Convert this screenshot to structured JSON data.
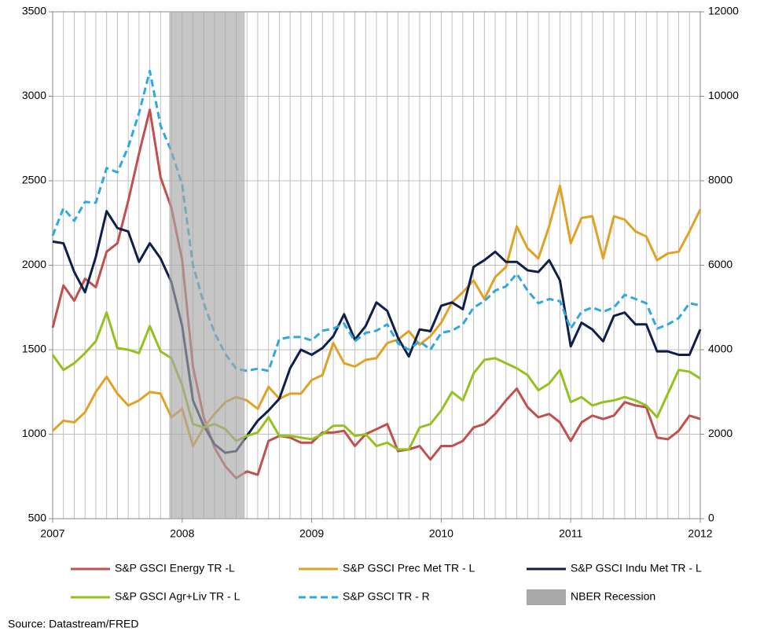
{
  "chart_data": {
    "type": "line",
    "categories": [
      "2007",
      null,
      null,
      null,
      null,
      null,
      null,
      null,
      null,
      null,
      null,
      null,
      "2008",
      null,
      null,
      null,
      null,
      null,
      null,
      null,
      null,
      null,
      null,
      null,
      "2009",
      null,
      null,
      null,
      null,
      null,
      null,
      null,
      null,
      null,
      null,
      null,
      "2010",
      null,
      null,
      null,
      null,
      null,
      null,
      null,
      null,
      null,
      null,
      null,
      "2011",
      null,
      null,
      null,
      null,
      null,
      null,
      null,
      null,
      null,
      null,
      null,
      "2012"
    ],
    "series": [
      {
        "name": "S&P GSCI Energy TR -L",
        "color": "#c0504d",
        "axis": "y",
        "values": [
          1630,
          1880,
          1790,
          1920,
          1870,
          2080,
          2130,
          2380,
          2660,
          2920,
          2520,
          2340,
          2030,
          1400,
          1100,
          920,
          810,
          740,
          780,
          760,
          960,
          990,
          980,
          950,
          950,
          1010,
          1010,
          1020,
          930,
          1000,
          1030,
          1060,
          900,
          910,
          930,
          850,
          930,
          930,
          960,
          1040,
          1060,
          1120,
          1200,
          1270,
          1160,
          1100,
          1120,
          1070,
          960,
          1070,
          1110,
          1090,
          1110,
          1190,
          1170,
          1160,
          980,
          970,
          1020,
          1110,
          1090
        ]
      },
      {
        "name": "S&P GSCI Prec Met TR - L",
        "color": "#e0a224",
        "axis": "y",
        "values": [
          1020,
          1080,
          1070,
          1130,
          1250,
          1340,
          1240,
          1170,
          1200,
          1250,
          1240,
          1100,
          1150,
          930,
          1040,
          1120,
          1190,
          1220,
          1200,
          1150,
          1280,
          1210,
          1240,
          1240,
          1320,
          1350,
          1540,
          1420,
          1400,
          1440,
          1450,
          1540,
          1560,
          1610,
          1530,
          1580,
          1660,
          1780,
          1840,
          1910,
          1800,
          1930,
          1990,
          2230,
          2100,
          2040,
          2230,
          2470,
          2130,
          2280,
          2290,
          2040,
          2290,
          2270,
          2200,
          2170,
          2030,
          2070,
          2080,
          2200,
          2330
        ]
      },
      {
        "name": "S&P GSCI Indu Met TR - L",
        "color": "#0f1f4b",
        "axis": "y",
        "values": [
          2140,
          2130,
          1960,
          1840,
          2050,
          2320,
          2220,
          2200,
          2020,
          2130,
          2040,
          1900,
          1640,
          1200,
          1050,
          940,
          890,
          900,
          990,
          1080,
          1140,
          1210,
          1390,
          1500,
          1470,
          1510,
          1580,
          1710,
          1560,
          1640,
          1780,
          1730,
          1570,
          1460,
          1620,
          1610,
          1760,
          1780,
          1740,
          1990,
          2030,
          2080,
          2020,
          2020,
          1970,
          1960,
          2030,
          1910,
          1520,
          1660,
          1620,
          1550,
          1700,
          1720,
          1650,
          1650,
          1490,
          1490,
          1470,
          1470,
          1620
        ]
      },
      {
        "name": "S&P GSCI Agr+Liv TR - L",
        "color": "#94c11f",
        "axis": "y",
        "values": [
          1470,
          1380,
          1420,
          1480,
          1550,
          1720,
          1510,
          1500,
          1480,
          1640,
          1490,
          1450,
          1290,
          1060,
          1040,
          1060,
          1030,
          960,
          990,
          1010,
          1100,
          990,
          990,
          980,
          970,
          1000,
          1050,
          1050,
          990,
          1000,
          930,
          950,
          910,
          910,
          1040,
          1060,
          1140,
          1250,
          1200,
          1360,
          1440,
          1450,
          1420,
          1390,
          1350,
          1260,
          1300,
          1380,
          1190,
          1220,
          1170,
          1190,
          1200,
          1220,
          1200,
          1170,
          1100,
          1240,
          1380,
          1370,
          1330
        ]
      },
      {
        "name": "S&P GSCI TR - R",
        "color": "#2ea8e0",
        "axis": "y2",
        "dashed": true,
        "values": [
          6700,
          7350,
          7050,
          7500,
          7480,
          8300,
          8200,
          8800,
          9600,
          10600,
          9300,
          8700,
          7900,
          6000,
          5100,
          4400,
          3900,
          3550,
          3500,
          3550,
          3500,
          4250,
          4300,
          4300,
          4220,
          4450,
          4500,
          4620,
          4200,
          4400,
          4450,
          4600,
          4150,
          4000,
          4200,
          4000,
          4400,
          4450,
          4600,
          5000,
          5150,
          5400,
          5500,
          5800,
          5400,
          5100,
          5200,
          5150,
          4500,
          4900,
          5000,
          4900,
          5000,
          5300,
          5200,
          5100,
          4500,
          4600,
          4750,
          5100,
          5050
        ]
      }
    ],
    "recession": {
      "name": "NBER Recession",
      "color": "#a8a8a8",
      "start": 10.8,
      "end": 17.8
    },
    "ylim": [
      500,
      3500
    ],
    "yticks": [
      500,
      1000,
      1500,
      2000,
      2500,
      3000,
      3500
    ],
    "y2lim": [
      0,
      12000
    ],
    "y2ticks": [
      0,
      2000,
      4000,
      6000,
      8000,
      10000,
      12000
    ],
    "grid": true,
    "source": "Source: Datastream/FRED"
  }
}
